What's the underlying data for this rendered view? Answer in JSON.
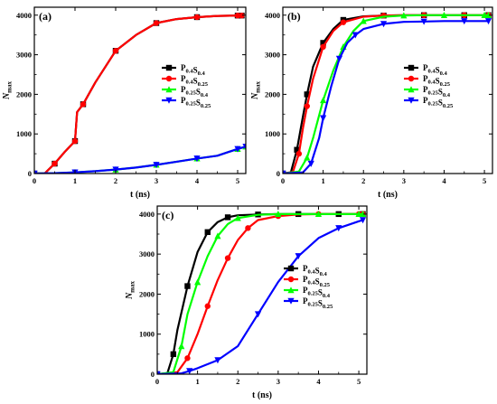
{
  "chart_data": [
    {
      "type": "line",
      "panel_label": "(a)",
      "xlabel": "t (ns)",
      "ylabel": "N",
      "ylabel_sub": "max",
      "xlim": [
        0,
        5.2
      ],
      "ylim": [
        0,
        4200
      ],
      "xticks": [
        "0",
        "1",
        "2",
        "3",
        "4",
        "5"
      ],
      "yticks": [
        "0",
        "1000",
        "2000",
        "3000",
        "4000"
      ],
      "legend_position": "right",
      "series": [
        {
          "name": "P0.4S0.4",
          "label_parts": [
            [
              "P",
              "0.4"
            ],
            [
              "S",
              "0.4"
            ]
          ],
          "color": "#000000",
          "marker": "square",
          "x": [
            0,
            0.25,
            0.5,
            0.75,
            1.0,
            1.05,
            1.2,
            1.5,
            2.0,
            2.5,
            3.0,
            3.5,
            4.0,
            4.5,
            5.0,
            5.1
          ],
          "y": [
            0,
            0,
            250,
            550,
            820,
            1550,
            1750,
            2300,
            3100,
            3500,
            3800,
            3900,
            3950,
            3980,
            3990,
            3990
          ]
        },
        {
          "name": "P0.4S0.25",
          "label_parts": [
            [
              "P",
              "0.4"
            ],
            [
              "S",
              "0.25"
            ]
          ],
          "color": "#ff0000",
          "marker": "circle",
          "x": [
            0,
            0.25,
            0.5,
            0.75,
            1.0,
            1.05,
            1.2,
            1.5,
            2.0,
            2.5,
            3.0,
            3.5,
            4.0,
            4.5,
            5.0,
            5.1
          ],
          "y": [
            0,
            0,
            250,
            550,
            820,
            1550,
            1750,
            2300,
            3100,
            3500,
            3800,
            3900,
            3950,
            3980,
            3990,
            3990
          ]
        },
        {
          "name": "P0.25S0.4",
          "label_parts": [
            [
              "P",
              "0.25"
            ],
            [
              "S",
              "0.4"
            ]
          ],
          "color": "#00ff00",
          "marker": "triangle-up",
          "x": [
            0,
            0.5,
            1.0,
            1.5,
            2.0,
            2.5,
            3.0,
            3.5,
            4.0,
            4.5,
            5.0,
            5.2
          ],
          "y": [
            0,
            10,
            30,
            60,
            100,
            150,
            220,
            300,
            380,
            450,
            620,
            680
          ]
        },
        {
          "name": "P0.25S0.25",
          "label_parts": [
            [
              "P",
              "0.25"
            ],
            [
              "S",
              "0.25"
            ]
          ],
          "color": "#0000ff",
          "marker": "triangle-down",
          "x": [
            0,
            0.5,
            1.0,
            1.5,
            2.0,
            2.5,
            3.0,
            3.5,
            4.0,
            4.5,
            5.0,
            5.2
          ],
          "y": [
            0,
            10,
            30,
            60,
            100,
            150,
            220,
            300,
            380,
            450,
            620,
            680
          ]
        }
      ]
    },
    {
      "type": "line",
      "panel_label": "(b)",
      "xlabel": "t (ns)",
      "ylabel": "N",
      "ylabel_sub": "max",
      "xlim": [
        0,
        5.2
      ],
      "ylim": [
        0,
        4200
      ],
      "xticks": [
        "0",
        "1",
        "2",
        "3",
        "4",
        "5"
      ],
      "yticks": [
        "0",
        "1000",
        "2000",
        "3000",
        "4000"
      ],
      "legend_position": "right",
      "series": [
        {
          "name": "P0.4S0.4",
          "label_parts": [
            [
              "P",
              "0.4"
            ],
            [
              "S",
              "0.4"
            ]
          ],
          "color": "#000000",
          "marker": "square",
          "x": [
            0,
            0.2,
            0.35,
            0.5,
            0.6,
            0.75,
            1.0,
            1.25,
            1.5,
            2.0,
            2.5,
            3.0,
            3.5,
            4.0,
            4.5,
            5.0,
            5.1
          ],
          "y": [
            0,
            30,
            600,
            1450,
            2000,
            2700,
            3300,
            3650,
            3880,
            3970,
            3990,
            4000,
            4000,
            4000,
            4000,
            4000,
            4000
          ]
        },
        {
          "name": "P0.4S0.25",
          "label_parts": [
            [
              "P",
              "0.4"
            ],
            [
              "S",
              "0.25"
            ]
          ],
          "color": "#ff0000",
          "marker": "circle",
          "x": [
            0,
            0.25,
            0.4,
            0.5,
            0.6,
            0.75,
            1.0,
            1.25,
            1.5,
            2.0,
            2.5,
            3.0,
            3.5,
            4.0,
            4.5,
            5.0,
            5.1
          ],
          "y": [
            0,
            40,
            500,
            1150,
            1700,
            2400,
            3200,
            3600,
            3820,
            3960,
            3990,
            4000,
            4000,
            4000,
            4000,
            4000,
            4000
          ]
        },
        {
          "name": "P0.25S0.4",
          "label_parts": [
            [
              "P",
              "0.25"
            ],
            [
              "S",
              "0.4"
            ]
          ],
          "color": "#00ff00",
          "marker": "triangle-up",
          "x": [
            0,
            0.4,
            0.6,
            0.75,
            1.0,
            1.25,
            1.5,
            1.75,
            2.0,
            2.5,
            3.0,
            3.5,
            4.0,
            4.5,
            5.0,
            5.1
          ],
          "y": [
            0,
            50,
            400,
            900,
            1850,
            2600,
            3200,
            3600,
            3850,
            3960,
            3990,
            4000,
            4000,
            4000,
            4000,
            4000
          ]
        },
        {
          "name": "P0.25S0.25",
          "label_parts": [
            [
              "P",
              "0.25"
            ],
            [
              "S",
              "0.25"
            ]
          ],
          "color": "#0000ff",
          "marker": "triangle-down",
          "x": [
            0,
            0.5,
            0.7,
            0.9,
            1.0,
            1.2,
            1.4,
            1.6,
            1.8,
            2.0,
            2.5,
            3.0,
            3.5,
            4.0,
            4.5,
            5.0,
            5.1
          ],
          "y": [
            0,
            30,
            250,
            900,
            1400,
            2200,
            2900,
            3300,
            3500,
            3650,
            3780,
            3830,
            3840,
            3850,
            3850,
            3850,
            3850
          ]
        }
      ]
    },
    {
      "type": "line",
      "panel_label": "(c)",
      "xlabel": "t (ns)",
      "ylabel": "N",
      "ylabel_sub": "max",
      "xlim": [
        0,
        5.2
      ],
      "ylim": [
        0,
        4200
      ],
      "xticks": [
        "0",
        "1",
        "2",
        "3",
        "4",
        "5"
      ],
      "yticks": [
        "0",
        "1000",
        "2000",
        "3000",
        "4000"
      ],
      "legend_position": "right",
      "series": [
        {
          "name": "P0.4S0.4",
          "label_parts": [
            [
              "P",
              "0.4"
            ],
            [
              "S",
              "0.4"
            ]
          ],
          "color": "#000000",
          "marker": "square",
          "x": [
            0,
            0.25,
            0.4,
            0.5,
            0.75,
            1.0,
            1.25,
            1.5,
            1.75,
            2.0,
            2.5,
            3.0,
            3.5,
            4.0,
            4.5,
            5.0,
            5.1
          ],
          "y": [
            0,
            20,
            500,
            1100,
            2200,
            3050,
            3550,
            3800,
            3920,
            3970,
            3990,
            4000,
            4000,
            4000,
            4000,
            4000,
            4000
          ]
        },
        {
          "name": "P0.4S0.25",
          "label_parts": [
            [
              "P",
              "0.4"
            ],
            [
              "S",
              "0.25"
            ]
          ],
          "color": "#ff0000",
          "marker": "circle",
          "x": [
            0,
            0.5,
            0.75,
            1.0,
            1.25,
            1.5,
            1.75,
            2.0,
            2.25,
            2.5,
            3.0,
            3.5,
            4.0,
            4.5,
            5.0,
            5.1
          ],
          "y": [
            0,
            50,
            400,
            1000,
            1700,
            2350,
            2900,
            3350,
            3650,
            3850,
            3950,
            3990,
            4000,
            4000,
            4000,
            4000
          ]
        },
        {
          "name": "P0.25S0.4",
          "label_parts": [
            [
              "P",
              "0.25"
            ],
            [
              "S",
              "0.4"
            ]
          ],
          "color": "#00ff00",
          "marker": "triangle-up",
          "x": [
            0,
            0.4,
            0.6,
            0.75,
            1.0,
            1.25,
            1.5,
            1.75,
            2.0,
            2.5,
            3.0,
            3.5,
            4.0,
            4.5,
            5.0,
            5.1
          ],
          "y": [
            0,
            50,
            700,
            1500,
            2300,
            2950,
            3450,
            3750,
            3900,
            3980,
            4000,
            4000,
            4000,
            4000,
            4000,
            4000
          ]
        },
        {
          "name": "P0.25S0.25",
          "label_parts": [
            [
              "P",
              "0.25"
            ],
            [
              "S",
              "0.25"
            ]
          ],
          "color": "#0000ff",
          "marker": "triangle-down",
          "x": [
            0,
            0.6,
            0.8,
            1.0,
            1.5,
            2.0,
            2.5,
            3.0,
            3.5,
            4.0,
            4.5,
            5.0,
            5.1
          ],
          "y": [
            0,
            20,
            80,
            150,
            350,
            700,
            1500,
            2300,
            2950,
            3400,
            3650,
            3820,
            3850
          ]
        }
      ]
    }
  ]
}
